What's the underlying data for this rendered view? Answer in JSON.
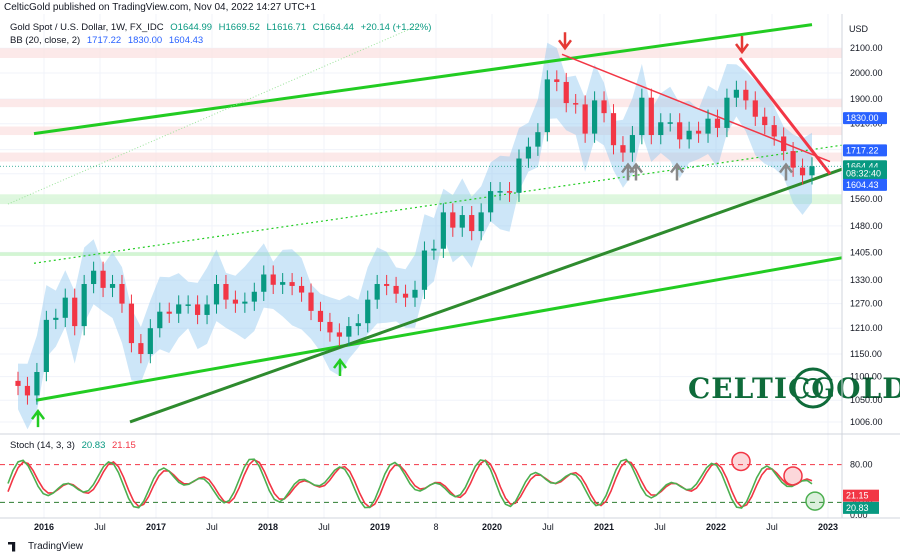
{
  "header": {
    "publisher_line": "CelticGold published on TradingView.com, Nov 04, 2022 14:27 UTC+1"
  },
  "legend": {
    "symbol": "Gold Spot / U.S. Dollar, 1W, FX_IDC",
    "open": "O1644.99",
    "high": "H1669.52",
    "low": "L1616.71",
    "close": "C1664.44",
    "change": "+20.14 (+1.22%)",
    "bb_label": "BB (20, close, 2)",
    "bb_values": [
      "1717.22",
      "1830.00",
      "1604.43"
    ],
    "stoch_label": "Stoch (14, 3, 3)",
    "stoch_values": [
      "20.83",
      "21.15"
    ]
  },
  "footer": {
    "brand": "TradingView"
  },
  "watermark": {
    "text": "CELTICGOLD"
  },
  "colors": {
    "up": "#089981",
    "down": "#f23645",
    "trend_green": "#22cc22",
    "trend_dark": "#2e8b2e",
    "bb": "#90c8f0",
    "stoch_k": "#4caf50",
    "stoch_d": "#f23645"
  },
  "chart_data": {
    "type": "candlestick",
    "y_axis": {
      "currency": "USD",
      "ticks": [
        1006,
        1050,
        1100,
        1150,
        1210,
        1270,
        1330,
        1405,
        1480,
        1560,
        1640,
        1720,
        1810,
        1900,
        2000,
        2100
      ],
      "tick_labels": [
        "1006.00",
        "1050.00",
        "1100.00",
        "1150.00",
        "1210.00",
        "1270.00",
        "1330.00",
        "1405.00",
        "1480.00",
        "1560.00",
        "1640.00",
        "1720.00",
        "1810.00",
        "1900.00",
        "2000.00",
        "2100.00"
      ],
      "scale": "log"
    },
    "x_axis": {
      "labels": [
        "2016",
        "Jul",
        "2017",
        "Jul",
        "2018",
        "Jul",
        "2019",
        "8",
        "2020",
        "Jul",
        "2021",
        "Jul",
        "2022",
        "Jul",
        "2023"
      ]
    },
    "price_tags": [
      {
        "label": "1830.00",
        "value": 1830,
        "color": "#2962ff"
      },
      {
        "label": "1717.22",
        "value": 1717.22,
        "color": "#2962ff"
      },
      {
        "label": "1664.44",
        "value": 1664.44,
        "color": "#089981"
      },
      {
        "label": "08:32:40",
        "value": 1641,
        "color": "#089981"
      },
      {
        "label": "1604.43",
        "value": 1604.43,
        "color": "#2962ff"
      }
    ],
    "close_series": [
      {
        "d": "2015-11",
        "c": 1080
      },
      {
        "d": "2015-12",
        "c": 1060
      },
      {
        "d": "2016-01",
        "c": 1110
      },
      {
        "d": "2016-02",
        "c": 1230
      },
      {
        "d": "2016-03",
        "c": 1235
      },
      {
        "d": "2016-04",
        "c": 1285
      },
      {
        "d": "2016-05",
        "c": 1215
      },
      {
        "d": "2016-06",
        "c": 1320
      },
      {
        "d": "2016-07",
        "c": 1355
      },
      {
        "d": "2016-08",
        "c": 1310
      },
      {
        "d": "2016-09",
        "c": 1320
      },
      {
        "d": "2016-10",
        "c": 1270
      },
      {
        "d": "2016-11",
        "c": 1175
      },
      {
        "d": "2016-12",
        "c": 1150
      },
      {
        "d": "2017-01",
        "c": 1210
      },
      {
        "d": "2017-02",
        "c": 1250
      },
      {
        "d": "2017-03",
        "c": 1245
      },
      {
        "d": "2017-04",
        "c": 1268
      },
      {
        "d": "2017-05",
        "c": 1268
      },
      {
        "d": "2017-06",
        "c": 1242
      },
      {
        "d": "2017-07",
        "c": 1268
      },
      {
        "d": "2017-08",
        "c": 1320
      },
      {
        "d": "2017-09",
        "c": 1280
      },
      {
        "d": "2017-10",
        "c": 1270
      },
      {
        "d": "2017-11",
        "c": 1275
      },
      {
        "d": "2017-12",
        "c": 1300
      },
      {
        "d": "2018-01",
        "c": 1345
      },
      {
        "d": "2018-02",
        "c": 1318
      },
      {
        "d": "2018-03",
        "c": 1325
      },
      {
        "d": "2018-04",
        "c": 1315
      },
      {
        "d": "2018-05",
        "c": 1298
      },
      {
        "d": "2018-06",
        "c": 1252
      },
      {
        "d": "2018-07",
        "c": 1225
      },
      {
        "d": "2018-08",
        "c": 1200
      },
      {
        "d": "2018-09",
        "c": 1190
      },
      {
        "d": "2018-10",
        "c": 1215
      },
      {
        "d": "2018-11",
        "c": 1222
      },
      {
        "d": "2018-12",
        "c": 1280
      },
      {
        "d": "2019-01",
        "c": 1320
      },
      {
        "d": "2019-02",
        "c": 1315
      },
      {
        "d": "2019-03",
        "c": 1295
      },
      {
        "d": "2019-04",
        "c": 1285
      },
      {
        "d": "2019-05",
        "c": 1305
      },
      {
        "d": "2019-06",
        "c": 1410
      },
      {
        "d": "2019-07",
        "c": 1415
      },
      {
        "d": "2019-08",
        "c": 1520
      },
      {
        "d": "2019-09",
        "c": 1475
      },
      {
        "d": "2019-10",
        "c": 1512
      },
      {
        "d": "2019-11",
        "c": 1465
      },
      {
        "d": "2019-12",
        "c": 1520
      },
      {
        "d": "2020-01",
        "c": 1585
      },
      {
        "d": "2020-02",
        "c": 1585
      },
      {
        "d": "2020-03",
        "c": 1580
      },
      {
        "d": "2020-04",
        "c": 1690
      },
      {
        "d": "2020-05",
        "c": 1730
      },
      {
        "d": "2020-06",
        "c": 1780
      },
      {
        "d": "2020-07",
        "c": 1975
      },
      {
        "d": "2020-08",
        "c": 1965
      },
      {
        "d": "2020-09",
        "c": 1885
      },
      {
        "d": "2020-10",
        "c": 1880
      },
      {
        "d": "2020-11",
        "c": 1775
      },
      {
        "d": "2020-12",
        "c": 1895
      },
      {
        "d": "2021-01",
        "c": 1848
      },
      {
        "d": "2021-02",
        "c": 1735
      },
      {
        "d": "2021-03",
        "c": 1710
      },
      {
        "d": "2021-04",
        "c": 1770
      },
      {
        "d": "2021-05",
        "c": 1905
      },
      {
        "d": "2021-06",
        "c": 1770
      },
      {
        "d": "2021-07",
        "c": 1815
      },
      {
        "d": "2021-08",
        "c": 1815
      },
      {
        "d": "2021-09",
        "c": 1755
      },
      {
        "d": "2021-10",
        "c": 1785
      },
      {
        "d": "2021-11",
        "c": 1775
      },
      {
        "d": "2021-12",
        "c": 1828
      },
      {
        "d": "2022-01",
        "c": 1795
      },
      {
        "d": "2022-02",
        "c": 1905
      },
      {
        "d": "2022-03",
        "c": 1935
      },
      {
        "d": "2022-04",
        "c": 1895
      },
      {
        "d": "2022-05",
        "c": 1835
      },
      {
        "d": "2022-06",
        "c": 1805
      },
      {
        "d": "2022-07",
        "c": 1765
      },
      {
        "d": "2022-08",
        "c": 1715
      },
      {
        "d": "2022-09",
        "c": 1660
      },
      {
        "d": "2022-10",
        "c": 1635
      },
      {
        "d": "2022-11",
        "c": 1664.44
      }
    ],
    "stochastic": {
      "ticks": [
        0,
        20,
        80
      ],
      "tick_labels": [
        "0.00",
        "20.00",
        "80.00"
      ],
      "k": 20.83,
      "d": 21.15
    }
  }
}
